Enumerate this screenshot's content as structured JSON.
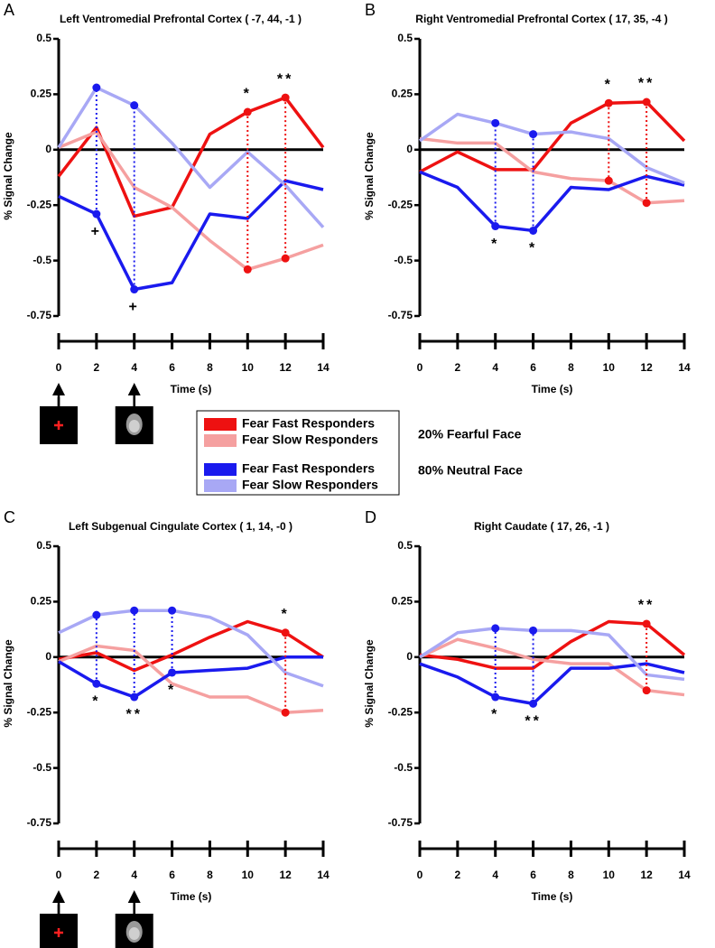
{
  "chart_data": [
    {
      "type": "line",
      "panel": "A",
      "title": "Left Ventromedial Prefrontal Cortex ( -7, 44, -1 )",
      "x_label": "Time (s)",
      "y_label": "% Signal Change",
      "x": [
        0,
        2,
        4,
        6,
        8,
        10,
        12,
        14
      ],
      "xlim": [
        0,
        14
      ],
      "xticks": [
        0,
        2,
        4,
        6,
        8,
        10,
        12,
        14
      ],
      "ylim": [
        -0.75,
        0.5
      ],
      "yticks": [
        -0.75,
        -0.5,
        -0.25,
        0,
        0.25,
        0.5
      ],
      "series": [
        {
          "color": "#ee1111",
          "values": [
            -0.12,
            0.1,
            -0.3,
            -0.26,
            0.07,
            0.17,
            0.235,
            0.01
          ]
        },
        {
          "color": "#f5a0a0",
          "values": [
            0.01,
            0.08,
            -0.17,
            -0.26,
            -0.41,
            -0.54,
            -0.49,
            -0.43
          ]
        },
        {
          "color": "#1a1aee",
          "values": [
            -0.21,
            -0.29,
            -0.63,
            -0.6,
            -0.29,
            -0.31,
            -0.14,
            -0.18
          ]
        },
        {
          "color": "#a8a8f5",
          "values": [
            0.01,
            0.28,
            0.2,
            0.03,
            -0.17,
            -0.01,
            -0.16,
            -0.35
          ]
        }
      ],
      "comparisons": [
        {
          "x": 2,
          "series": [
            2,
            3
          ],
          "label": "+"
        },
        {
          "x": 4,
          "series": [
            2,
            3
          ],
          "label": "+"
        },
        {
          "x": 10,
          "series": [
            0,
            1
          ],
          "label": "*"
        },
        {
          "x": 12,
          "series": [
            0,
            1
          ],
          "label": "**"
        }
      ]
    },
    {
      "type": "line",
      "panel": "B",
      "title": "Right Ventromedial Prefrontal Cortex ( 17, 35, -4 )",
      "x_label": "Time (s)",
      "y_label": "% Signal Change",
      "x": [
        0,
        2,
        4,
        6,
        8,
        10,
        12,
        14
      ],
      "xlim": [
        0,
        14
      ],
      "xticks": [
        0,
        2,
        4,
        6,
        8,
        10,
        12,
        14
      ],
      "ylim": [
        -0.75,
        0.5
      ],
      "yticks": [
        -0.75,
        -0.5,
        -0.25,
        0,
        0.25,
        0.5
      ],
      "series": [
        {
          "color": "#ee1111",
          "values": [
            -0.1,
            -0.01,
            -0.09,
            -0.09,
            0.12,
            0.21,
            0.215,
            0.04
          ]
        },
        {
          "color": "#f5a0a0",
          "values": [
            0.05,
            0.03,
            0.03,
            -0.1,
            -0.13,
            -0.14,
            -0.24,
            -0.23
          ]
        },
        {
          "color": "#1a1aee",
          "values": [
            -0.1,
            -0.17,
            -0.345,
            -0.365,
            -0.17,
            -0.18,
            -0.12,
            -0.16
          ]
        },
        {
          "color": "#a8a8f5",
          "values": [
            0.04,
            0.16,
            0.12,
            0.07,
            0.08,
            0.05,
            -0.08,
            -0.15
          ]
        }
      ],
      "comparisons": [
        {
          "x": 4,
          "series": [
            2,
            3
          ],
          "label": "*"
        },
        {
          "x": 6,
          "series": [
            2,
            3
          ],
          "label": "*"
        },
        {
          "x": 10,
          "series": [
            0,
            1
          ],
          "label": "*"
        },
        {
          "x": 12,
          "series": [
            0,
            1
          ],
          "label": "**"
        }
      ]
    },
    {
      "type": "line",
      "panel": "C",
      "title": "Left Subgenual Cingulate Cortex ( 1, 14, -0 )",
      "x_label": "Time (s)",
      "y_label": "% Signal Change",
      "x": [
        0,
        2,
        4,
        6,
        8,
        10,
        12,
        14
      ],
      "xlim": [
        0,
        14
      ],
      "xticks": [
        0,
        2,
        4,
        6,
        8,
        10,
        12,
        14
      ],
      "ylim": [
        -0.75,
        0.5
      ],
      "yticks": [
        -0.75,
        -0.5,
        -0.25,
        0,
        0.25,
        0.5
      ],
      "series": [
        {
          "color": "#ee1111",
          "values": [
            -0.01,
            0.02,
            -0.06,
            0.01,
            0.09,
            0.16,
            0.11,
            0.0
          ]
        },
        {
          "color": "#f5a0a0",
          "values": [
            -0.02,
            0.05,
            0.03,
            -0.12,
            -0.18,
            -0.18,
            -0.25,
            -0.24
          ]
        },
        {
          "color": "#1a1aee",
          "values": [
            -0.02,
            -0.12,
            -0.18,
            -0.07,
            -0.06,
            -0.05,
            0.0,
            0.0
          ]
        },
        {
          "color": "#a8a8f5",
          "values": [
            0.11,
            0.19,
            0.21,
            0.21,
            0.18,
            0.1,
            -0.07,
            -0.13
          ]
        }
      ],
      "comparisons": [
        {
          "x": 2,
          "series": [
            2,
            3
          ],
          "label": "*"
        },
        {
          "x": 4,
          "series": [
            2,
            3
          ],
          "label": "**"
        },
        {
          "x": 6,
          "series": [
            2,
            3
          ],
          "label": "*"
        },
        {
          "x": 12,
          "series": [
            0,
            1
          ],
          "label": "*"
        }
      ]
    },
    {
      "type": "line",
      "panel": "D",
      "title": "Right Caudate ( 17, 26, -1 )",
      "x_label": "Time (s)",
      "y_label": "% Signal Change",
      "x": [
        0,
        2,
        4,
        6,
        8,
        10,
        12,
        14
      ],
      "xlim": [
        0,
        14
      ],
      "xticks": [
        0,
        2,
        4,
        6,
        8,
        10,
        12,
        14
      ],
      "ylim": [
        -0.75,
        0.5
      ],
      "yticks": [
        -0.75,
        -0.5,
        -0.25,
        0,
        0.25,
        0.5
      ],
      "series": [
        {
          "color": "#ee1111",
          "values": [
            0.01,
            -0.01,
            -0.05,
            -0.05,
            0.07,
            0.16,
            0.15,
            0.01
          ]
        },
        {
          "color": "#f5a0a0",
          "values": [
            0.0,
            0.08,
            0.04,
            -0.01,
            -0.03,
            -0.03,
            -0.15,
            -0.17
          ]
        },
        {
          "color": "#1a1aee",
          "values": [
            -0.03,
            -0.09,
            -0.18,
            -0.21,
            -0.05,
            -0.05,
            -0.03,
            -0.07
          ]
        },
        {
          "color": "#a8a8f5",
          "values": [
            0.0,
            0.11,
            0.13,
            0.12,
            0.12,
            0.1,
            -0.08,
            -0.1
          ]
        }
      ],
      "comparisons": [
        {
          "x": 4,
          "series": [
            2,
            3
          ],
          "label": "*"
        },
        {
          "x": 6,
          "series": [
            2,
            3
          ],
          "label": "**"
        },
        {
          "x": 12,
          "series": [
            0,
            1
          ],
          "label": "**"
        }
      ]
    }
  ],
  "legend": {
    "groups": [
      {
        "label": "20% Fearful Face",
        "entries": [
          {
            "name": "Fear Fast Responders",
            "color": "#ee1111"
          },
          {
            "name": "Fear Slow Responders",
            "color": "#f5a0a0"
          }
        ]
      },
      {
        "label": "80% Neutral Face",
        "entries": [
          {
            "name": "Fear Fast Responders",
            "color": "#1a1aee"
          },
          {
            "name": "Fear Slow Responders",
            "color": "#a8a8f5"
          }
        ]
      }
    ]
  }
}
